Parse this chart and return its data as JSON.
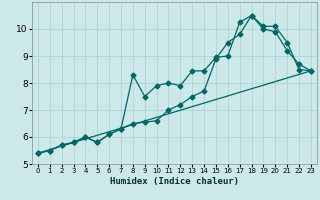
{
  "xlabel": "Humidex (Indice chaleur)",
  "ylabel": "",
  "bg_color": "#cce8e8",
  "grid_color": "#b0d4d4",
  "line_color": "#006666",
  "xlim": [
    -0.5,
    23.5
  ],
  "ylim": [
    5,
    11
  ],
  "xticks": [
    0,
    1,
    2,
    3,
    4,
    5,
    6,
    7,
    8,
    9,
    10,
    11,
    12,
    13,
    14,
    15,
    16,
    17,
    18,
    19,
    20,
    21,
    22,
    23
  ],
  "yticks": [
    5,
    6,
    7,
    8,
    9,
    10
  ],
  "series1_x": [
    0,
    1,
    2,
    3,
    4,
    5,
    6,
    7,
    8,
    9,
    10,
    11,
    12,
    13,
    14,
    15,
    16,
    17,
    18,
    19,
    20,
    21,
    22,
    23
  ],
  "series1_y": [
    5.4,
    5.5,
    5.7,
    5.8,
    6.0,
    5.8,
    6.1,
    6.3,
    8.3,
    7.5,
    7.9,
    8.0,
    7.9,
    8.45,
    8.45,
    8.95,
    9.0,
    10.25,
    10.5,
    10.1,
    10.1,
    9.5,
    8.5,
    8.45
  ],
  "series2_x": [
    0,
    1,
    2,
    3,
    4,
    5,
    6,
    7,
    8,
    9,
    10,
    11,
    12,
    13,
    14,
    15,
    16,
    17,
    18,
    19,
    20,
    21,
    22,
    23
  ],
  "series2_y": [
    5.4,
    5.5,
    5.7,
    5.8,
    6.0,
    5.8,
    6.1,
    6.3,
    6.5,
    6.55,
    6.6,
    7.0,
    7.2,
    7.5,
    7.7,
    8.9,
    9.5,
    9.8,
    10.5,
    10.0,
    9.9,
    9.2,
    8.7,
    8.45
  ],
  "series3_x": [
    0,
    23
  ],
  "series3_y": [
    5.4,
    8.45
  ]
}
